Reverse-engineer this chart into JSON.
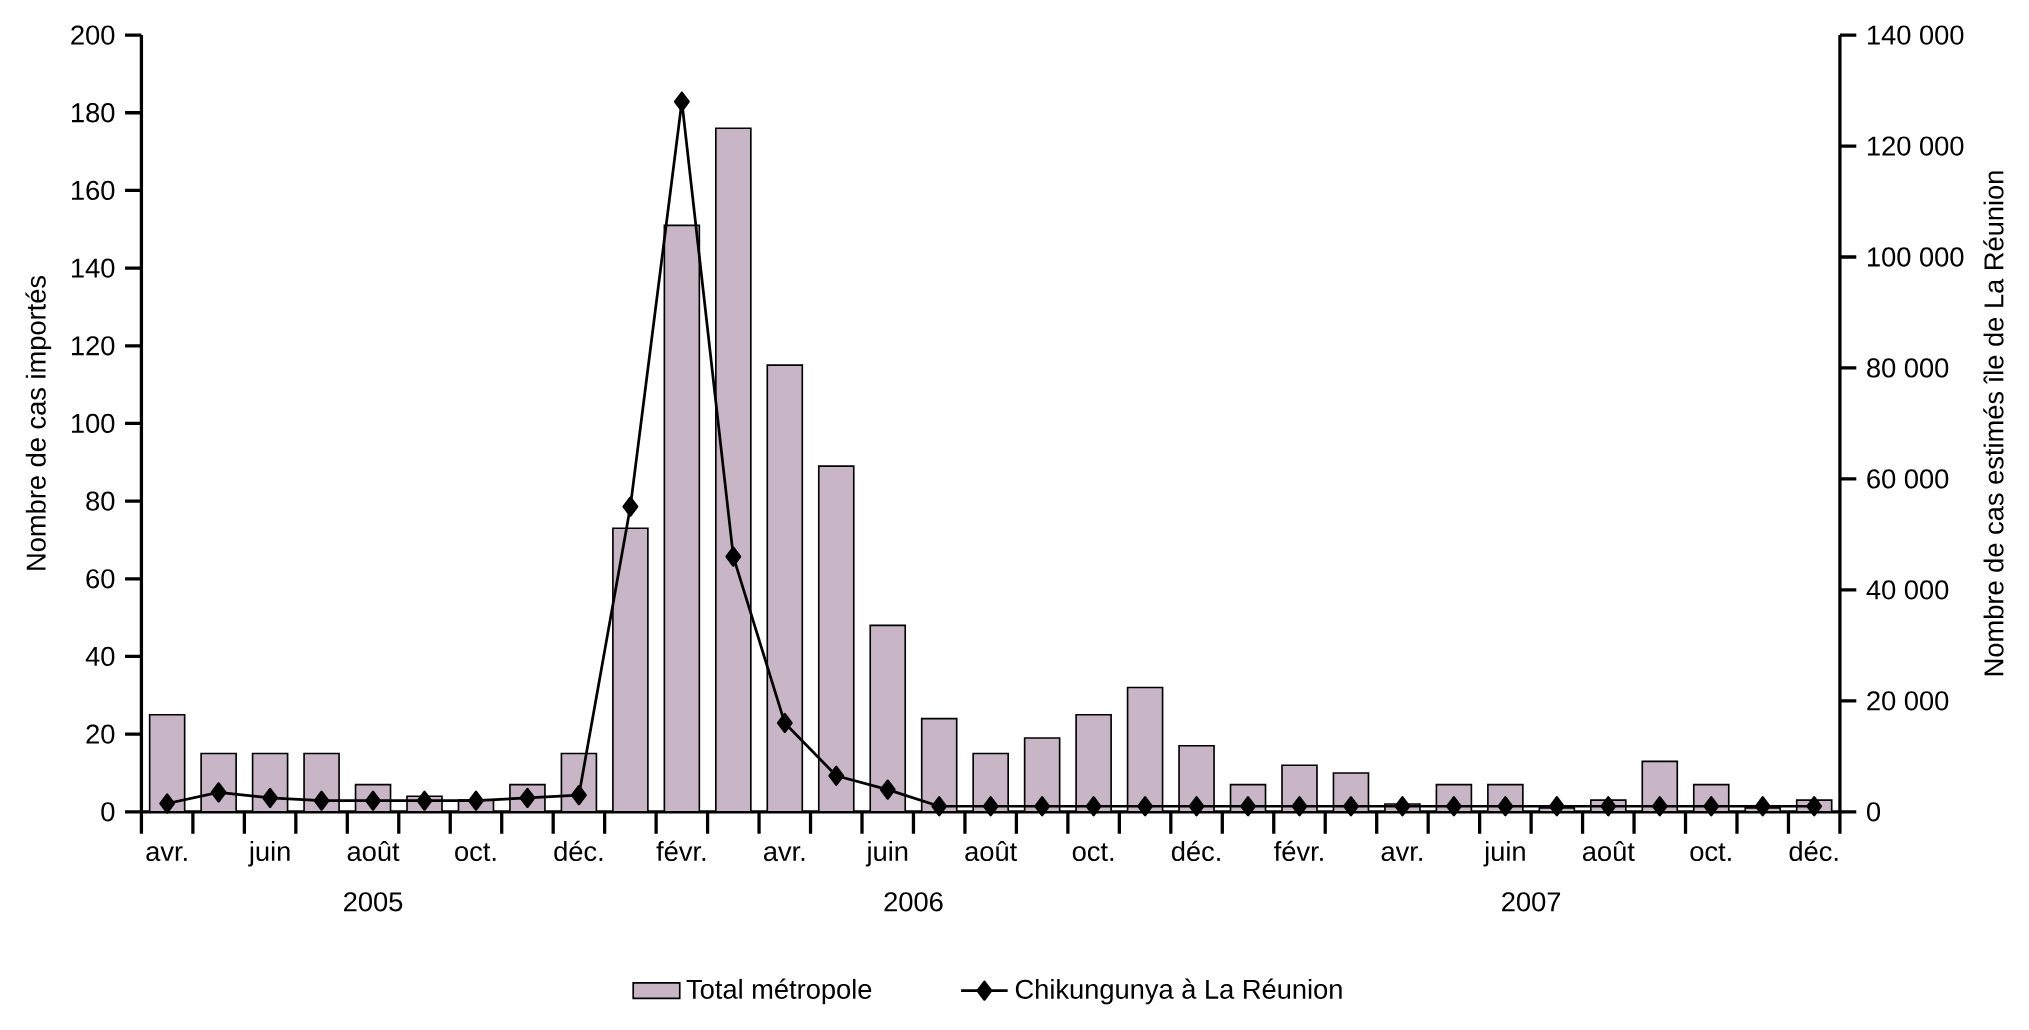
{
  "chart_data": {
    "type": "bar",
    "categories": [
      "avr.",
      null,
      "juin",
      null,
      "août",
      null,
      "oct.",
      null,
      "déc.",
      null,
      "févr.",
      null,
      "avr.",
      null,
      "juin",
      null,
      "août",
      null,
      "oct.",
      null,
      "déc.",
      null,
      "févr.",
      null,
      "avr.",
      null,
      "juin",
      null,
      "août",
      null,
      "oct.",
      null,
      "déc."
    ],
    "series": [
      {
        "name": "Total métropole",
        "color": "#c8b6c6",
        "values": [
          25,
          15,
          15,
          15,
          7,
          4,
          3,
          7,
          15,
          73,
          151,
          176,
          115,
          89,
          48,
          24,
          15,
          19,
          25,
          32,
          17,
          7,
          12,
          10,
          2,
          7,
          7,
          1,
          3,
          13,
          7,
          1,
          3
        ]
      },
      {
        "name": "Chikungunya à La Réunion",
        "type": "line",
        "axis": "y2",
        "color": "#000000",
        "marker": "diamond",
        "values": [
          1500,
          3500,
          2500,
          2000,
          2000,
          2000,
          2000,
          2500,
          3000,
          55000,
          128000,
          46000,
          16000,
          6500,
          4000,
          1000,
          1000,
          1000,
          1000,
          1000,
          1000,
          1000,
          1000,
          1000,
          1000,
          1000,
          1000,
          1000,
          1000,
          1000,
          1000,
          1000,
          1000
        ]
      }
    ],
    "ylabel": "Nombre de cas importés",
    "y2label": "Nombre de cas estimés île de La Réunion",
    "ylim": [
      0,
      200
    ],
    "yticks": [
      0,
      20,
      40,
      60,
      80,
      100,
      120,
      140,
      160,
      180,
      200
    ],
    "y2lim": [
      0,
      140000
    ],
    "y2ticks": [
      {
        "value": 0,
        "label": "0"
      },
      {
        "value": 20000,
        "label": "20 000"
      },
      {
        "value": 40000,
        "label": "40 000"
      },
      {
        "value": 60000,
        "label": "60 000"
      },
      {
        "value": 80000,
        "label": "80 000"
      },
      {
        "value": 100000,
        "label": "100 000"
      },
      {
        "value": 120000,
        "label": "120 000"
      },
      {
        "value": 140000,
        "label": "140 000"
      }
    ],
    "legend": "bottom",
    "annotations": [
      "2005",
      "2006",
      "2007"
    ]
  }
}
